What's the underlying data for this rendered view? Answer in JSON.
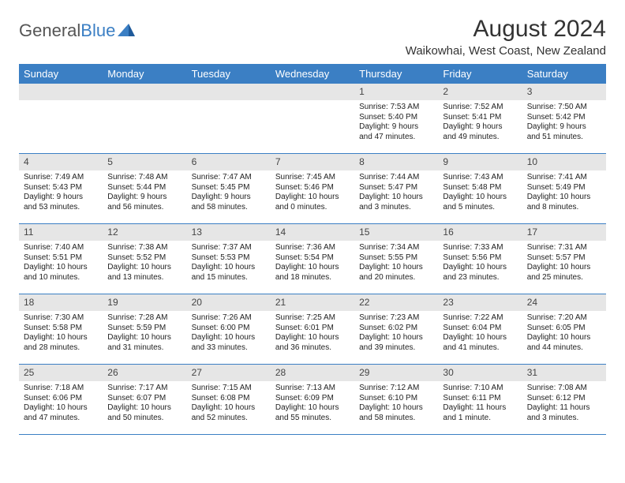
{
  "brand": {
    "part1": "General",
    "part2": "Blue"
  },
  "title": "August 2024",
  "location": "Waikowhai, West Coast, New Zealand",
  "colors": {
    "accent": "#3b7fc4",
    "header_bg": "#3b7fc4",
    "daynum_bg": "#e6e6e6",
    "text": "#222222",
    "title_text": "#333333"
  },
  "day_names": [
    "Sunday",
    "Monday",
    "Tuesday",
    "Wednesday",
    "Thursday",
    "Friday",
    "Saturday"
  ],
  "weeks": [
    [
      {
        "day": "",
        "sunrise": "",
        "sunset": "",
        "daylight": ""
      },
      {
        "day": "",
        "sunrise": "",
        "sunset": "",
        "daylight": ""
      },
      {
        "day": "",
        "sunrise": "",
        "sunset": "",
        "daylight": ""
      },
      {
        "day": "",
        "sunrise": "",
        "sunset": "",
        "daylight": ""
      },
      {
        "day": "1",
        "sunrise": "Sunrise: 7:53 AM",
        "sunset": "Sunset: 5:40 PM",
        "daylight": "Daylight: 9 hours and 47 minutes."
      },
      {
        "day": "2",
        "sunrise": "Sunrise: 7:52 AM",
        "sunset": "Sunset: 5:41 PM",
        "daylight": "Daylight: 9 hours and 49 minutes."
      },
      {
        "day": "3",
        "sunrise": "Sunrise: 7:50 AM",
        "sunset": "Sunset: 5:42 PM",
        "daylight": "Daylight: 9 hours and 51 minutes."
      }
    ],
    [
      {
        "day": "4",
        "sunrise": "Sunrise: 7:49 AM",
        "sunset": "Sunset: 5:43 PM",
        "daylight": "Daylight: 9 hours and 53 minutes."
      },
      {
        "day": "5",
        "sunrise": "Sunrise: 7:48 AM",
        "sunset": "Sunset: 5:44 PM",
        "daylight": "Daylight: 9 hours and 56 minutes."
      },
      {
        "day": "6",
        "sunrise": "Sunrise: 7:47 AM",
        "sunset": "Sunset: 5:45 PM",
        "daylight": "Daylight: 9 hours and 58 minutes."
      },
      {
        "day": "7",
        "sunrise": "Sunrise: 7:45 AM",
        "sunset": "Sunset: 5:46 PM",
        "daylight": "Daylight: 10 hours and 0 minutes."
      },
      {
        "day": "8",
        "sunrise": "Sunrise: 7:44 AM",
        "sunset": "Sunset: 5:47 PM",
        "daylight": "Daylight: 10 hours and 3 minutes."
      },
      {
        "day": "9",
        "sunrise": "Sunrise: 7:43 AM",
        "sunset": "Sunset: 5:48 PM",
        "daylight": "Daylight: 10 hours and 5 minutes."
      },
      {
        "day": "10",
        "sunrise": "Sunrise: 7:41 AM",
        "sunset": "Sunset: 5:49 PM",
        "daylight": "Daylight: 10 hours and 8 minutes."
      }
    ],
    [
      {
        "day": "11",
        "sunrise": "Sunrise: 7:40 AM",
        "sunset": "Sunset: 5:51 PM",
        "daylight": "Daylight: 10 hours and 10 minutes."
      },
      {
        "day": "12",
        "sunrise": "Sunrise: 7:38 AM",
        "sunset": "Sunset: 5:52 PM",
        "daylight": "Daylight: 10 hours and 13 minutes."
      },
      {
        "day": "13",
        "sunrise": "Sunrise: 7:37 AM",
        "sunset": "Sunset: 5:53 PM",
        "daylight": "Daylight: 10 hours and 15 minutes."
      },
      {
        "day": "14",
        "sunrise": "Sunrise: 7:36 AM",
        "sunset": "Sunset: 5:54 PM",
        "daylight": "Daylight: 10 hours and 18 minutes."
      },
      {
        "day": "15",
        "sunrise": "Sunrise: 7:34 AM",
        "sunset": "Sunset: 5:55 PM",
        "daylight": "Daylight: 10 hours and 20 minutes."
      },
      {
        "day": "16",
        "sunrise": "Sunrise: 7:33 AM",
        "sunset": "Sunset: 5:56 PM",
        "daylight": "Daylight: 10 hours and 23 minutes."
      },
      {
        "day": "17",
        "sunrise": "Sunrise: 7:31 AM",
        "sunset": "Sunset: 5:57 PM",
        "daylight": "Daylight: 10 hours and 25 minutes."
      }
    ],
    [
      {
        "day": "18",
        "sunrise": "Sunrise: 7:30 AM",
        "sunset": "Sunset: 5:58 PM",
        "daylight": "Daylight: 10 hours and 28 minutes."
      },
      {
        "day": "19",
        "sunrise": "Sunrise: 7:28 AM",
        "sunset": "Sunset: 5:59 PM",
        "daylight": "Daylight: 10 hours and 31 minutes."
      },
      {
        "day": "20",
        "sunrise": "Sunrise: 7:26 AM",
        "sunset": "Sunset: 6:00 PM",
        "daylight": "Daylight: 10 hours and 33 minutes."
      },
      {
        "day": "21",
        "sunrise": "Sunrise: 7:25 AM",
        "sunset": "Sunset: 6:01 PM",
        "daylight": "Daylight: 10 hours and 36 minutes."
      },
      {
        "day": "22",
        "sunrise": "Sunrise: 7:23 AM",
        "sunset": "Sunset: 6:02 PM",
        "daylight": "Daylight: 10 hours and 39 minutes."
      },
      {
        "day": "23",
        "sunrise": "Sunrise: 7:22 AM",
        "sunset": "Sunset: 6:04 PM",
        "daylight": "Daylight: 10 hours and 41 minutes."
      },
      {
        "day": "24",
        "sunrise": "Sunrise: 7:20 AM",
        "sunset": "Sunset: 6:05 PM",
        "daylight": "Daylight: 10 hours and 44 minutes."
      }
    ],
    [
      {
        "day": "25",
        "sunrise": "Sunrise: 7:18 AM",
        "sunset": "Sunset: 6:06 PM",
        "daylight": "Daylight: 10 hours and 47 minutes."
      },
      {
        "day": "26",
        "sunrise": "Sunrise: 7:17 AM",
        "sunset": "Sunset: 6:07 PM",
        "daylight": "Daylight: 10 hours and 50 minutes."
      },
      {
        "day": "27",
        "sunrise": "Sunrise: 7:15 AM",
        "sunset": "Sunset: 6:08 PM",
        "daylight": "Daylight: 10 hours and 52 minutes."
      },
      {
        "day": "28",
        "sunrise": "Sunrise: 7:13 AM",
        "sunset": "Sunset: 6:09 PM",
        "daylight": "Daylight: 10 hours and 55 minutes."
      },
      {
        "day": "29",
        "sunrise": "Sunrise: 7:12 AM",
        "sunset": "Sunset: 6:10 PM",
        "daylight": "Daylight: 10 hours and 58 minutes."
      },
      {
        "day": "30",
        "sunrise": "Sunrise: 7:10 AM",
        "sunset": "Sunset: 6:11 PM",
        "daylight": "Daylight: 11 hours and 1 minute."
      },
      {
        "day": "31",
        "sunrise": "Sunrise: 7:08 AM",
        "sunset": "Sunset: 6:12 PM",
        "daylight": "Daylight: 11 hours and 3 minutes."
      }
    ]
  ]
}
